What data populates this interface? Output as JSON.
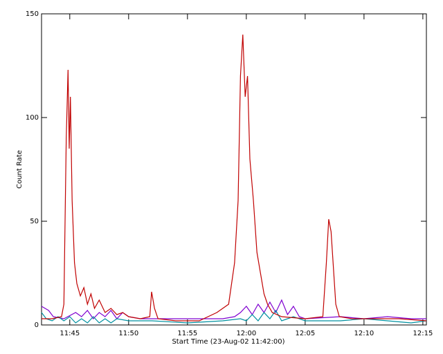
{
  "chart_data": {
    "type": "line",
    "xlabel": "Start Time (23-Aug-02 11:42:00)",
    "ylabel": "Count Rate",
    "xlim": [
      0.6,
      33.3
    ],
    "ylim": [
      0,
      150
    ],
    "xticks": [
      {
        "value": 3,
        "label": "11:45"
      },
      {
        "value": 8,
        "label": "11:50"
      },
      {
        "value": 13,
        "label": "11:55"
      },
      {
        "value": 18,
        "label": "12:00"
      },
      {
        "value": 23,
        "label": "12:05"
      },
      {
        "value": 28,
        "label": "12:10"
      },
      {
        "value": 33,
        "label": "12:15"
      }
    ],
    "yticks": [
      0,
      50,
      100,
      150
    ],
    "series": [
      {
        "color": "#7f00d0",
        "x": [
          0.6,
          1.2,
          1.6,
          2.5,
          3.5,
          4,
          4.5,
          5,
          5.5,
          6,
          6.5,
          7,
          7.5,
          8,
          9,
          12,
          16,
          17,
          17.5,
          18,
          18.5,
          19,
          19.5,
          20,
          20.5,
          21,
          21.5,
          22,
          22.5,
          23,
          26,
          28,
          30,
          32,
          33.3
        ],
        "values": [
          9,
          7,
          4,
          3,
          6,
          4,
          7,
          3,
          6,
          4,
          7,
          3,
          6,
          4,
          3,
          3,
          3,
          4,
          6,
          9,
          5,
          10,
          6,
          11,
          6,
          12,
          5,
          9,
          4,
          3,
          4,
          3,
          4,
          3,
          3
        ]
      },
      {
        "color": "#0090a0",
        "x": [
          0.6,
          1,
          1.5,
          2,
          2.5,
          3,
          3.5,
          4,
          4.5,
          5,
          5.5,
          6,
          6.5,
          7,
          8,
          10,
          13,
          16,
          17.5,
          18,
          18.5,
          19,
          19.5,
          20,
          20.5,
          21,
          22,
          23,
          26,
          28,
          30,
          32,
          33.3
        ],
        "values": [
          6,
          3,
          2,
          4,
          2,
          4,
          1,
          3,
          1,
          4,
          1,
          3,
          1,
          3,
          2,
          2,
          1,
          2,
          3,
          2,
          5,
          2,
          6,
          3,
          7,
          2,
          4,
          2,
          2,
          3,
          2,
          1,
          2
        ]
      },
      {
        "color": "#c00000",
        "x": [
          0.6,
          1.5,
          2.3,
          2.5,
          2.7,
          2.85,
          2.95,
          3.05,
          3.2,
          3.4,
          3.6,
          3.9,
          4.2,
          4.5,
          4.8,
          5.1,
          5.5,
          6,
          6.5,
          7,
          7.5,
          8,
          9,
          9.8,
          9.95,
          10.2,
          10.5,
          12,
          14,
          15.5,
          16,
          16.5,
          17,
          17.3,
          17.5,
          17.7,
          17.9,
          18.1,
          18.3,
          18.6,
          18.9,
          19.2,
          19.5,
          19.8,
          20.2,
          21,
          23,
          24.5,
          24.8,
          25,
          25.2,
          25.6,
          25.9,
          27,
          29,
          31,
          33.3
        ],
        "values": [
          3,
          3,
          4,
          10,
          90,
          123,
          85,
          110,
          60,
          30,
          20,
          14,
          18,
          10,
          15,
          8,
          12,
          6,
          8,
          5,
          6,
          4,
          3,
          4,
          16,
          8,
          3,
          2,
          2,
          6,
          8,
          10,
          30,
          60,
          120,
          140,
          110,
          120,
          80,
          60,
          35,
          25,
          15,
          10,
          6,
          4,
          3,
          4,
          30,
          51,
          45,
          10,
          4,
          3,
          3,
          3,
          2
        ]
      }
    ]
  }
}
